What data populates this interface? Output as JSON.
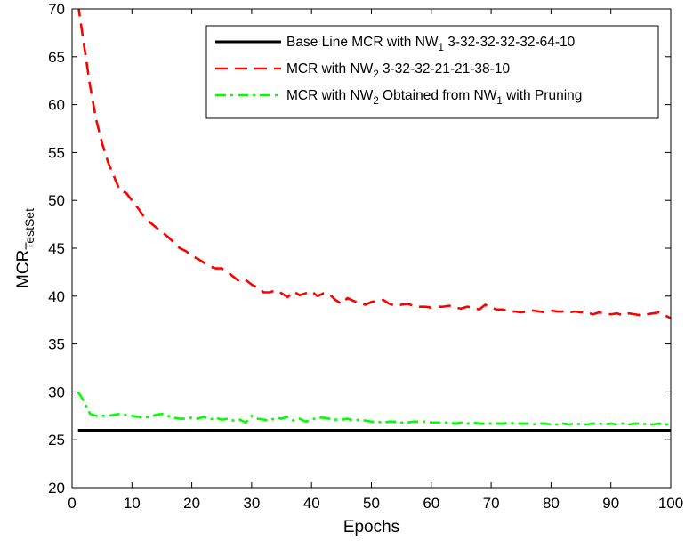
{
  "chart_data": {
    "type": "line",
    "xlabel": "Epochs",
    "ylabel": {
      "main": "MCR",
      "sub": "TestSet"
    },
    "xlim": [
      0,
      100
    ],
    "ylim": [
      20,
      70
    ],
    "xticks": [
      0,
      10,
      20,
      30,
      40,
      50,
      60,
      70,
      80,
      90,
      100
    ],
    "yticks": [
      20,
      25,
      30,
      35,
      40,
      45,
      50,
      55,
      60,
      65,
      70
    ],
    "grid": false,
    "legend_position": "top-right",
    "series": [
      {
        "name": "Base Line MCR with NW1 3-32-32-32-32-64-10",
        "legend_parts": [
          {
            "t": "Base Line MCR with NW"
          },
          {
            "t": "1",
            "sub": true
          },
          {
            "t": " 3-32-32-32-32-64-10"
          }
        ],
        "color": "#000000",
        "style": "solid",
        "x": [
          1,
          100
        ],
        "y": [
          26.0,
          26.0
        ]
      },
      {
        "name": "MCR with NW2 3-32-32-21-21-38-10",
        "legend_parts": [
          {
            "t": "MCR with NW"
          },
          {
            "t": "2",
            "sub": true
          },
          {
            "t": " 3-32-32-21-21-38-10"
          }
        ],
        "color": "#ff0000",
        "style": "dashed",
        "x": [
          1,
          2,
          3,
          4,
          5,
          6,
          7,
          8,
          9,
          10,
          11,
          12,
          13,
          14,
          15,
          16,
          17,
          18,
          19,
          20,
          21,
          22,
          23,
          24,
          25,
          26,
          27,
          28,
          29,
          30,
          31,
          32,
          33,
          34,
          35,
          36,
          37,
          38,
          39,
          40,
          41,
          42,
          43,
          44,
          45,
          46,
          47,
          48,
          49,
          50,
          51,
          52,
          53,
          54,
          55,
          56,
          57,
          58,
          59,
          60,
          61,
          62,
          63,
          64,
          65,
          66,
          67,
          68,
          69,
          70,
          71,
          72,
          73,
          74,
          75,
          76,
          77,
          78,
          79,
          80,
          81,
          82,
          83,
          84,
          85,
          86,
          87,
          88,
          89,
          90,
          91,
          92,
          93,
          94,
          95,
          96,
          97,
          98,
          99,
          100
        ],
        "y": [
          70.5,
          66.2,
          62.0,
          58.5,
          56.0,
          54.0,
          52.5,
          51.0,
          50.8,
          50.0,
          49.2,
          48.3,
          47.7,
          47.2,
          46.7,
          46.2,
          45.6,
          45.0,
          44.7,
          44.2,
          43.9,
          43.5,
          43.1,
          42.9,
          42.9,
          42.5,
          42.0,
          41.5,
          41.7,
          41.2,
          40.9,
          40.4,
          40.4,
          40.6,
          40.3,
          39.9,
          40.5,
          40.1,
          40.3,
          40.5,
          40.0,
          40.3,
          40.2,
          39.6,
          39.2,
          39.8,
          39.5,
          39.3,
          39.1,
          39.4,
          39.5,
          39.6,
          39.2,
          39.0,
          39.1,
          39.2,
          39.0,
          38.9,
          38.9,
          38.8,
          38.9,
          38.9,
          39.0,
          38.8,
          38.7,
          38.9,
          38.8,
          38.6,
          39.1,
          38.8,
          38.6,
          38.6,
          38.4,
          38.4,
          38.3,
          38.4,
          38.5,
          38.4,
          38.3,
          38.5,
          38.4,
          38.4,
          38.3,
          38.4,
          38.3,
          38.3,
          38.1,
          38.3,
          38.2,
          38.1,
          38.2,
          38.0,
          38.2,
          38.1,
          38.0,
          38.1,
          38.2,
          38.3,
          38.0,
          37.7
        ]
      },
      {
        "name": "MCR with NW2 Obtained from NW1 with Pruning",
        "legend_parts": [
          {
            "t": "MCR with NW"
          },
          {
            "t": "2",
            "sub": true
          },
          {
            "t": " Obtained from NW"
          },
          {
            "t": "1",
            "sub": true
          },
          {
            "t": " with Pruning"
          }
        ],
        "color": "#00ff00",
        "style": "dashdot",
        "x": [
          1,
          2,
          3,
          4,
          5,
          6,
          7,
          8,
          9,
          10,
          11,
          12,
          13,
          14,
          15,
          16,
          17,
          18,
          19,
          20,
          21,
          22,
          23,
          24,
          25,
          26,
          27,
          28,
          29,
          30,
          31,
          32,
          33,
          34,
          35,
          36,
          37,
          38,
          39,
          40,
          41,
          42,
          43,
          44,
          45,
          46,
          47,
          48,
          49,
          50,
          51,
          52,
          53,
          54,
          55,
          56,
          57,
          58,
          59,
          60,
          61,
          62,
          63,
          64,
          65,
          66,
          67,
          68,
          69,
          70,
          71,
          72,
          73,
          74,
          75,
          76,
          77,
          78,
          79,
          80,
          81,
          82,
          83,
          84,
          85,
          86,
          87,
          88,
          89,
          90,
          91,
          92,
          93,
          94,
          95,
          96,
          97,
          98,
          99,
          100
        ],
        "y": [
          30.0,
          29.0,
          27.7,
          27.5,
          27.5,
          27.5,
          27.6,
          27.7,
          27.6,
          27.5,
          27.4,
          27.3,
          27.4,
          27.6,
          27.7,
          27.5,
          27.3,
          27.2,
          27.2,
          27.3,
          27.2,
          27.4,
          27.1,
          27.3,
          27.1,
          27.2,
          27.0,
          27.1,
          26.8,
          27.5,
          27.2,
          27.1,
          27.0,
          27.3,
          27.2,
          27.4,
          27.0,
          27.2,
          26.9,
          27.1,
          27.3,
          27.3,
          27.2,
          27.1,
          27.1,
          27.2,
          27.0,
          27.1,
          27.0,
          26.9,
          26.9,
          26.8,
          26.9,
          26.9,
          26.8,
          26.8,
          26.9,
          26.9,
          26.9,
          26.8,
          26.8,
          26.8,
          26.8,
          26.7,
          26.8,
          26.7,
          26.8,
          26.7,
          26.7,
          26.7,
          26.7,
          26.7,
          26.8,
          26.7,
          26.7,
          26.7,
          26.6,
          26.7,
          26.7,
          26.6,
          26.6,
          26.7,
          26.6,
          26.7,
          26.6,
          26.6,
          26.7,
          26.7,
          26.6,
          26.7,
          26.6,
          26.7,
          26.6,
          26.7,
          26.7,
          26.6,
          26.6,
          26.7,
          26.6,
          26.6
        ]
      }
    ]
  }
}
